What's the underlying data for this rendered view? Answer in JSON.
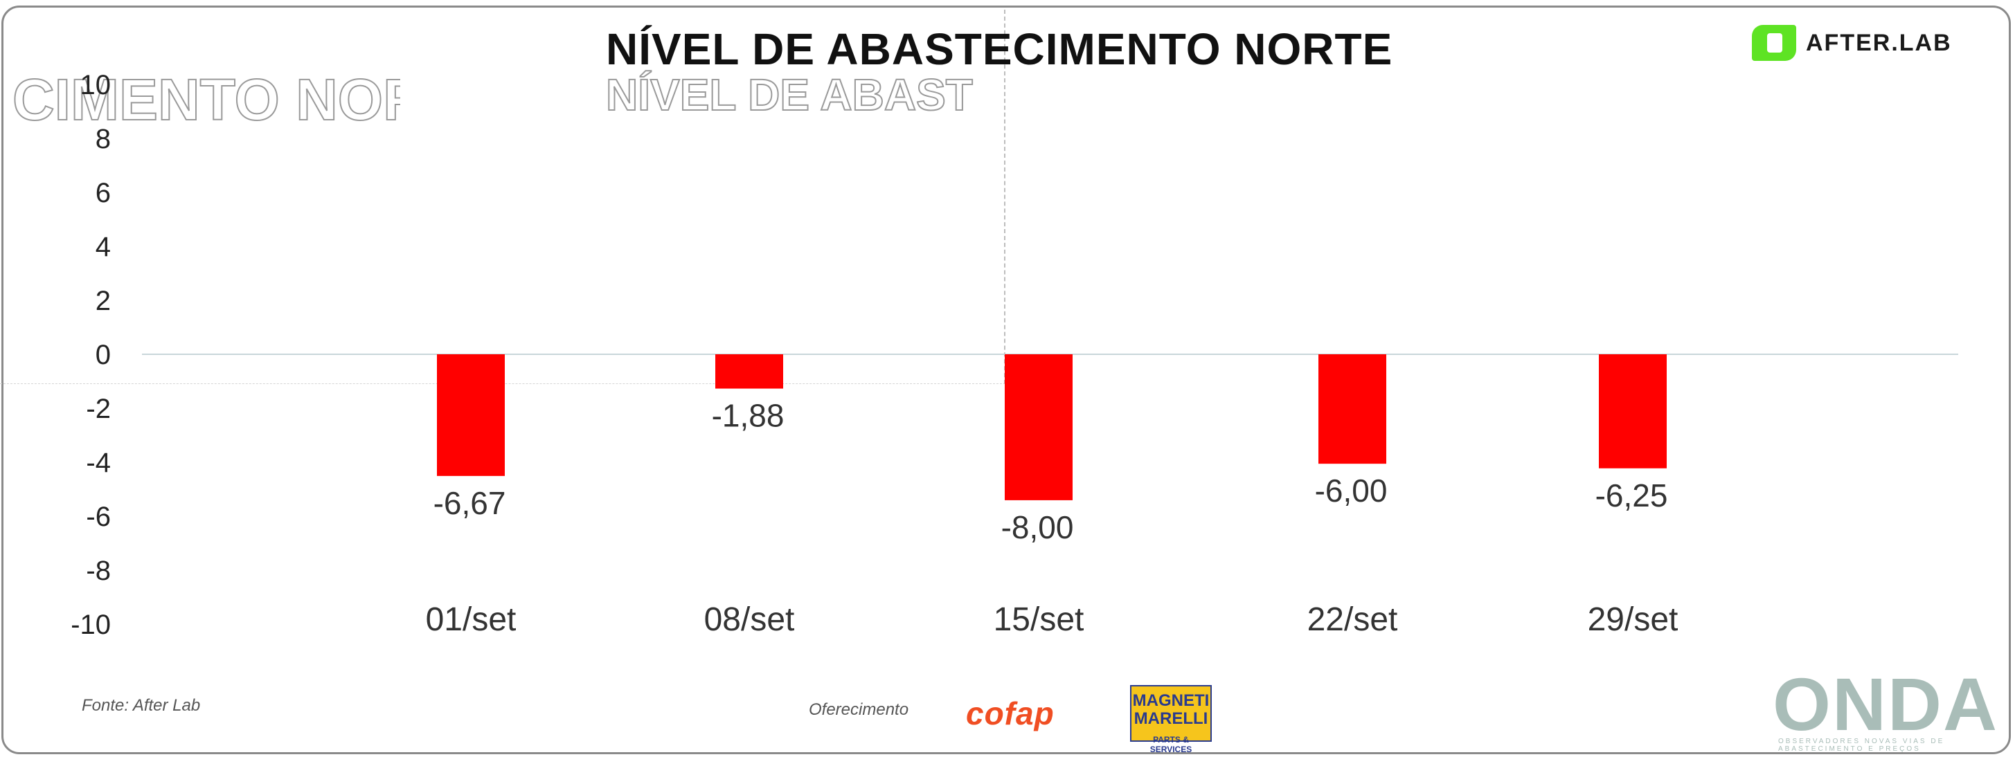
{
  "header": {
    "title": "NÍVEL DE ABASTECIMENTO NORTE",
    "title_ghost": "NÍVEL DE ABAST",
    "left_ghost": "CIMENTO NORTE",
    "brand_logo_text": "AFTER.LAB"
  },
  "chart_data": {
    "type": "bar",
    "categories": [
      "01/set",
      "08/set",
      "15/set",
      "22/set",
      "29/set"
    ],
    "values": [
      -6.67,
      -1.88,
      -8.0,
      -6.0,
      -6.25
    ],
    "value_labels": [
      "-6,67",
      "-1,88",
      "-8,00",
      "-6,00",
      "-6,25"
    ],
    "y_ticks": [
      "10",
      "8",
      "6",
      "4",
      "2",
      "0",
      "-2",
      "-4",
      "-6",
      "-8",
      "-10"
    ],
    "ylim": [
      -10,
      10
    ],
    "title": "NÍVEL DE ABASTECIMENTO NORTE",
    "xlabel": "",
    "ylabel": "",
    "bar_color": "#ff0000",
    "baseline_color": "#c8d6da",
    "grid": false
  },
  "footer": {
    "source": "Fonte: After Lab",
    "sponsor": "Oferecimento",
    "sponsor_logo_1": "cofap",
    "sponsor_logo_2_line1": "MAGNETI",
    "sponsor_logo_2_line2": "MARELLI",
    "sponsor_logo_2_sub": "PARTS & SERVICES",
    "brand_logo": "ONDA",
    "brand_logo_sub": "OBSERVADORES NOVAS VIAS DE ABASTECIMENTO E PREÇOS"
  },
  "colors": {
    "accent_green": "#5ee324",
    "bar_red": "#ff0000",
    "cofap_orange": "#f04e23",
    "magneti_yellow": "#f6c51c",
    "onda_gray": "#a9bdb8"
  }
}
